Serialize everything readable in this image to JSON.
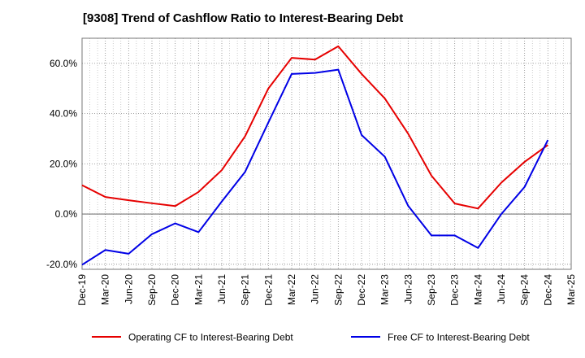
{
  "chart_data": {
    "type": "line",
    "title": "[9308]  Trend of Cashflow Ratio to Interest-Bearing Debt",
    "xlabel": "",
    "ylabel": "",
    "x": [
      "Dec-19",
      "Mar-20",
      "Jun-20",
      "Sep-20",
      "Dec-20",
      "Mar-21",
      "Jun-21",
      "Sep-21",
      "Dec-21",
      "Mar-22",
      "Jun-22",
      "Sep-22",
      "Dec-22",
      "Mar-23",
      "Jun-23",
      "Sep-23",
      "Dec-23",
      "Mar-24",
      "Jun-24",
      "Sep-24",
      "Dec-24",
      "Mar-25"
    ],
    "y_ticks": [
      -20,
      0,
      20,
      40,
      60
    ],
    "y_tick_labels": [
      "-20.0%",
      "0.0%",
      "20.0%",
      "40.0%",
      "60.0%"
    ],
    "ylim": [
      -22,
      70
    ],
    "grid": true,
    "legend_position": "bottom",
    "series": [
      {
        "name": "Operating CF to Interest-Bearing Debt",
        "color": "#e60000",
        "values": [
          11.5,
          6.8,
          5.5,
          4.3,
          3.2,
          8.8,
          17.5,
          31,
          50,
          62.2,
          61.5,
          66.8,
          55.8,
          46,
          32,
          15.3,
          4.2,
          2.2,
          12.5,
          20.8,
          27.5,
          null
        ]
      },
      {
        "name": "Free CF to Interest-Bearing Debt",
        "color": "#0000e6",
        "values": [
          -20.2,
          -14.3,
          -15.8,
          -8,
          -3.7,
          -7.2,
          5,
          16.8,
          36.5,
          55.8,
          56.2,
          57.5,
          31.5,
          22.8,
          3.3,
          -8.5,
          -8.5,
          -13.5,
          0,
          10.8,
          29.5,
          null
        ]
      }
    ]
  }
}
